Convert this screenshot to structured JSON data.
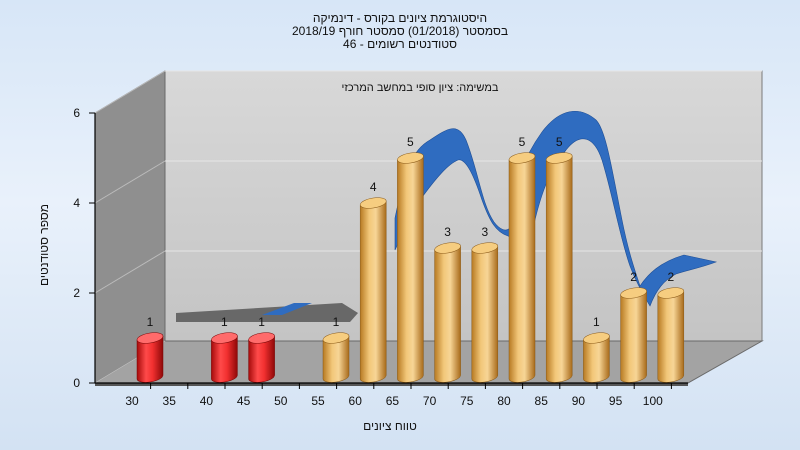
{
  "chart_title": {
    "line1": "היסטוגרמת ציונים בקורס - דינמיקה",
    "line2": "בסמסטר  (01/2018)  סמסטר חורף 2018/19",
    "line3": "סטודנטים רשומים - 46"
  },
  "annotation": "במשימה: ציון סופי במחשב המרכזי",
  "colors": {
    "failing": "#e01818",
    "passing": "#e8a848",
    "curve": "#2f6cc0",
    "floor": "#9c9c9c",
    "back_wall": "#cfcfcf",
    "left_wall": "#8e8e8e"
  },
  "chart_data": {
    "type": "bar",
    "xlabel": "טווח ציונים",
    "ylabel": "מספר סטודנטים",
    "ylim": [
      0,
      6
    ],
    "y_ticks": [
      "0",
      "2",
      "4",
      "6"
    ],
    "categories": [
      "30",
      "35",
      "40",
      "45",
      "50",
      "55",
      "60",
      "65",
      "70",
      "75",
      "80",
      "85",
      "90",
      "95",
      "100"
    ],
    "series": [
      {
        "values": [
          1,
          0,
          1,
          1,
          0,
          1,
          4,
          5,
          3,
          3,
          5,
          5,
          1,
          2,
          2
        ],
        "categories_of_bars": [
          "30",
          "40",
          "45",
          "55",
          "60",
          "65",
          "70",
          "75",
          "80",
          "85",
          "90",
          "95",
          "100"
        ]
      }
    ],
    "bar_colors": [
      "failing",
      "",
      "failing",
      "failing",
      "",
      "passing",
      "passing",
      "passing",
      "passing",
      "passing",
      "passing",
      "passing",
      "passing",
      "passing",
      "passing"
    ],
    "data_labels": [
      "1",
      "",
      "1",
      "1",
      "",
      "1",
      "4",
      "5",
      "3",
      "3",
      "5",
      "5",
      "1",
      "2",
      "2"
    ],
    "grid": true
  }
}
